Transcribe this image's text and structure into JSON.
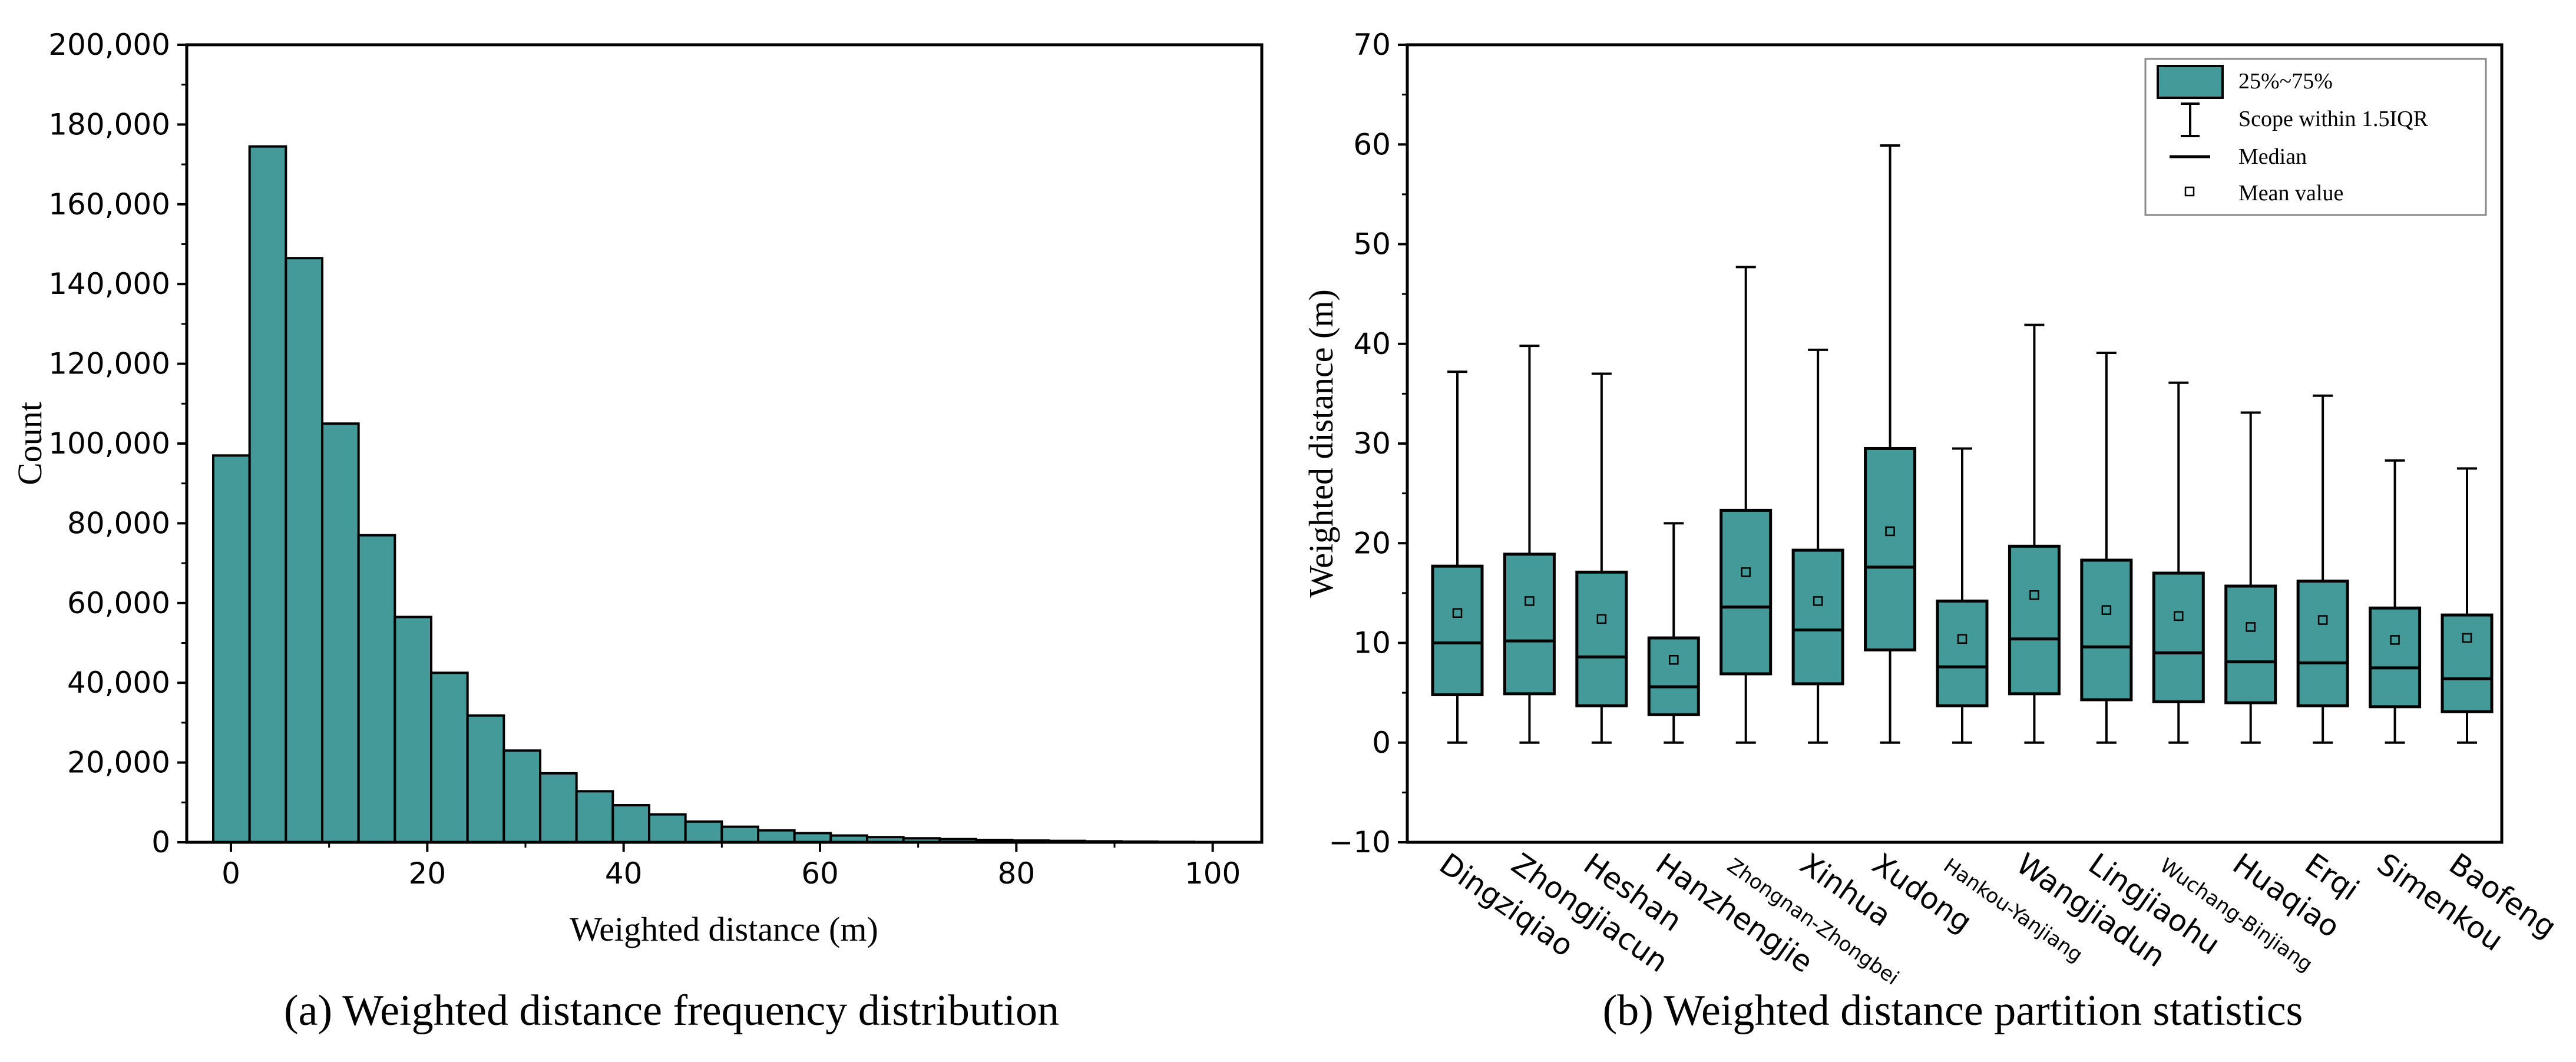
{
  "colors": {
    "fill": "#449a99",
    "stroke": "#000000"
  },
  "chart_data": [
    {
      "type": "bar",
      "subtype": "histogram",
      "caption": "(a) Weighted distance frequency distribution",
      "xlabel": "Weighted distance (m)",
      "ylabel": "Count",
      "bin_width": 3.7,
      "bin_start": -1.8,
      "values": [
        97000,
        174500,
        146500,
        105000,
        77000,
        56500,
        42500,
        31800,
        23000,
        17300,
        12800,
        9300,
        7000,
        5200,
        3900,
        3000,
        2300,
        1700,
        1300,
        1000,
        800,
        600,
        450,
        350,
        250,
        180,
        120
      ],
      "xlim": [
        -4.5,
        105
      ],
      "ylim": [
        0,
        200000
      ],
      "xticks": [
        0,
        20,
        40,
        60,
        80,
        100
      ],
      "yticks": [
        0,
        20000,
        40000,
        60000,
        80000,
        100000,
        120000,
        140000,
        160000,
        180000,
        200000
      ],
      "ytick_labels": [
        "0",
        "20,000",
        "40,000",
        "60,000",
        "80,000",
        "100,000",
        "120,000",
        "140,000",
        "160,000",
        "180,000",
        "200,000"
      ],
      "xtick_labels": [
        "0",
        "20",
        "40",
        "60",
        "80",
        "100"
      ]
    },
    {
      "type": "box",
      "caption": "(b) Weighted distance partition statistics",
      "xlabel": "",
      "ylabel": "Weighted distance (m)",
      "ylim": [
        -10,
        70
      ],
      "yticks": [
        -10,
        0,
        10,
        20,
        30,
        40,
        50,
        60,
        70
      ],
      "ytick_labels": [
        "−10",
        "0",
        "10",
        "20",
        "30",
        "40",
        "50",
        "60",
        "70"
      ],
      "categories": [
        "Dingziqiao",
        "Zhongjiacun",
        "Heshan",
        "Hanzhengjie",
        "Zhongnan-Zhongbei",
        "Xinhua",
        "Xudong",
        "Hankou-Yanjiang",
        "Wangjiadun",
        "Lingjiaohu",
        "Wuchang-Binjiang",
        "Huaqiao",
        "Erqi",
        "Simenkou",
        "Baofeng"
      ],
      "small_label_categories": [
        "Zhongnan-Zhongbei",
        "Hankou-Yanjiang",
        "Wuchang-Binjiang"
      ],
      "series": [
        {
          "name": "Dingziqiao",
          "min": 0,
          "q1": 4.8,
          "median": 10.0,
          "q3": 17.7,
          "max": 37.2,
          "mean": 13.0
        },
        {
          "name": "Zhongjiacun",
          "min": 0,
          "q1": 4.9,
          "median": 10.2,
          "q3": 18.9,
          "max": 39.8,
          "mean": 14.2
        },
        {
          "name": "Heshan",
          "min": 0,
          "q1": 3.7,
          "median": 8.6,
          "q3": 17.1,
          "max": 37.0,
          "mean": 12.4
        },
        {
          "name": "Hanzhengjie",
          "min": 0,
          "q1": 2.8,
          "median": 5.6,
          "q3": 10.5,
          "max": 22.0,
          "mean": 8.3
        },
        {
          "name": "Zhongnan-Zhongbei",
          "min": 0,
          "q1": 6.9,
          "median": 13.6,
          "q3": 23.3,
          "max": 47.7,
          "mean": 17.1
        },
        {
          "name": "Xinhua",
          "min": 0,
          "q1": 5.9,
          "median": 11.3,
          "q3": 19.3,
          "max": 39.4,
          "mean": 14.2
        },
        {
          "name": "Xudong",
          "min": 0,
          "q1": 9.3,
          "median": 17.6,
          "q3": 29.5,
          "max": 59.9,
          "mean": 21.2
        },
        {
          "name": "Hankou-Yanjiang",
          "min": 0,
          "q1": 3.7,
          "median": 7.6,
          "q3": 14.2,
          "max": 29.5,
          "mean": 10.4
        },
        {
          "name": "Wangjiadun",
          "min": 0,
          "q1": 4.9,
          "median": 10.4,
          "q3": 19.7,
          "max": 41.9,
          "mean": 14.8
        },
        {
          "name": "Lingjiaohu",
          "min": 0,
          "q1": 4.3,
          "median": 9.6,
          "q3": 18.3,
          "max": 39.1,
          "mean": 13.3
        },
        {
          "name": "Wuchang-Binjiang",
          "min": 0,
          "q1": 4.1,
          "median": 9.0,
          "q3": 17.0,
          "max": 36.1,
          "mean": 12.7
        },
        {
          "name": "Huaqiao",
          "min": 0,
          "q1": 4.0,
          "median": 8.1,
          "q3": 15.7,
          "max": 33.1,
          "mean": 11.6
        },
        {
          "name": "Erqi",
          "min": 0,
          "q1": 3.7,
          "median": 8.0,
          "q3": 16.2,
          "max": 34.8,
          "mean": 12.3
        },
        {
          "name": "Simenkou",
          "min": 0,
          "q1": 3.6,
          "median": 7.5,
          "q3": 13.5,
          "max": 28.3,
          "mean": 10.3
        },
        {
          "name": "Baofeng",
          "min": 0,
          "q1": 3.1,
          "median": 6.4,
          "q3": 12.8,
          "max": 27.5,
          "mean": 10.5
        }
      ],
      "legend": {
        "position": "top-right",
        "entries": [
          "25%~75%",
          "Scope within 1.5IQR",
          "Median",
          "Mean value"
        ]
      }
    }
  ]
}
